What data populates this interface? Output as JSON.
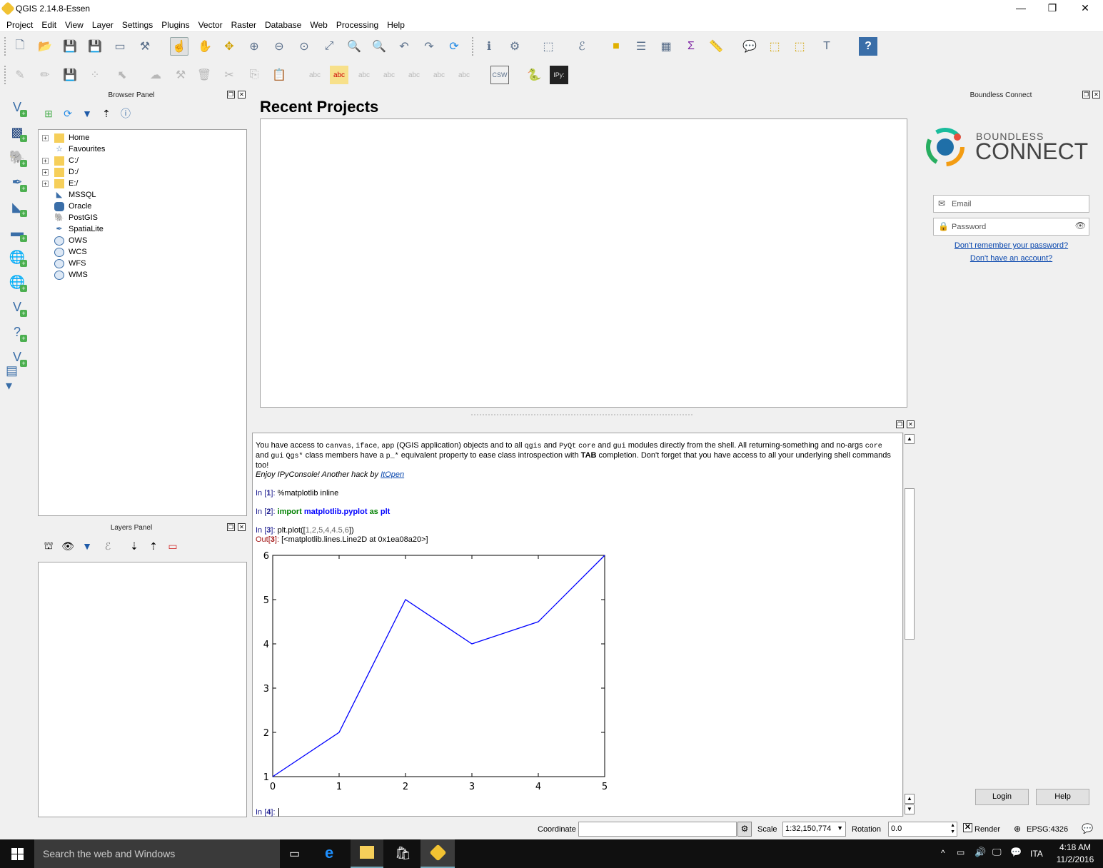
{
  "window": {
    "title": "QGIS 2.14.8-Essen",
    "minimize": "—",
    "maximize": "❐",
    "close": "✕"
  },
  "menu": [
    "Project",
    "Edit",
    "View",
    "Layer",
    "Settings",
    "Plugins",
    "Vector",
    "Raster",
    "Database",
    "Web",
    "Processing",
    "Help"
  ],
  "browser_panel": {
    "title": "Browser Panel",
    "items": [
      {
        "label": "Home",
        "expandable": true,
        "icon": "folder-icon"
      },
      {
        "label": "Favourites",
        "expandable": false,
        "icon": "star-icon"
      },
      {
        "label": "C:/",
        "expandable": true,
        "icon": "folder-icon"
      },
      {
        "label": "D:/",
        "expandable": true,
        "icon": "folder-icon"
      },
      {
        "label": "E:/",
        "expandable": true,
        "icon": "folder-icon"
      },
      {
        "label": "MSSQL",
        "expandable": false,
        "icon": "mssql-icon"
      },
      {
        "label": "Oracle",
        "expandable": false,
        "icon": "oracle-icon"
      },
      {
        "label": "PostGIS",
        "expandable": false,
        "icon": "postgis-icon"
      },
      {
        "label": "SpatiaLite",
        "expandable": false,
        "icon": "spatialite-icon"
      },
      {
        "label": "OWS",
        "expandable": false,
        "icon": "globe-icon"
      },
      {
        "label": "WCS",
        "expandable": false,
        "icon": "globe-icon"
      },
      {
        "label": "WFS",
        "expandable": false,
        "icon": "globe-icon"
      },
      {
        "label": "WMS",
        "expandable": false,
        "icon": "globe-icon"
      }
    ]
  },
  "layers_panel": {
    "title": "Layers Panel"
  },
  "recent_projects": {
    "title": "Recent Projects"
  },
  "console": {
    "intro_1": "You have access to ",
    "intro_code_1": "canvas",
    "intro_sep_1": ", ",
    "intro_code_2": "iface",
    "intro_sep_2": ", ",
    "intro_code_3": "app",
    "intro_2": " (QGIS application) objects and to all ",
    "intro_code_4": "qgis",
    "intro_3": " and ",
    "intro_code_5": "PyQt",
    "intro_sep_3": " ",
    "intro_code_6": "core",
    "intro_4": " and ",
    "intro_code_7": "gui",
    "intro_5": " modules directly from the shell. All returning-something and no-args ",
    "intro_code_8": "core",
    "intro_line2_1": "and ",
    "intro_code_9": "gui",
    "intro_sep_4": " ",
    "intro_code_10": "Qgs*",
    "intro_line2_2": " class members have a ",
    "intro_code_11": "p_*",
    "intro_line2_3": " equivalent property to ease class introspection with ",
    "intro_bold": "TAB",
    "intro_line2_4": " completion. Don't forget that you have access to all your underlying shell commands",
    "intro_line3": "too!",
    "enjoy": "Enjoy IPyConsole! Another hack by ",
    "enjoy_link": "ItOpen",
    "in1_label": "In [",
    "in1_num": "1",
    "in1_close": "]: ",
    "in1_code": "%matplotlib inline",
    "in2_num": "2",
    "in2_kw1": "import",
    "in2_mod": "matplotlib.pyplot",
    "in2_kw2": "as",
    "in2_alias": "plt",
    "in3_num": "3",
    "in3_code_1": "plt.plot([",
    "in3_code_args": "1,2,5,4,4.5,6",
    "in3_code_2": "])",
    "out_label": "Out[",
    "out3_num": "3",
    "out3_text": "[<matplotlib.lines.Line2D at 0x1ea08a20>]",
    "in4_num": "4"
  },
  "chart_data": {
    "type": "line",
    "x": [
      0,
      1,
      2,
      3,
      4,
      5
    ],
    "series": [
      {
        "values": [
          1,
          2,
          5,
          4,
          4.5,
          6
        ],
        "color": "#0000ff"
      }
    ],
    "xticks": [
      "0",
      "1",
      "2",
      "3",
      "4",
      "5"
    ],
    "yticks": [
      "1",
      "2",
      "3",
      "4",
      "5",
      "6"
    ],
    "xlim": [
      0,
      5
    ],
    "ylim": [
      1,
      6
    ],
    "grid": false
  },
  "boundless": {
    "panel_title": "Boundless Connect",
    "logo_top": "BOUNDLESS",
    "logo_bottom": "CONNECT",
    "email_placeholder": "Email",
    "password_placeholder": "Password",
    "forgot": "Don't remember your password?",
    "no_account": "Don't have an account?",
    "login": "Login",
    "help": "Help"
  },
  "statusbar": {
    "coordinate_label": "Coordinate",
    "scale_label": "Scale",
    "scale_value": "1:32,150,774",
    "rotation_label": "Rotation",
    "rotation_value": "0.0",
    "render_label": "Render",
    "crs": "EPSG:4326"
  },
  "taskbar": {
    "search_placeholder": "Search the web and Windows",
    "lang": "ITA",
    "time": "4:18 AM",
    "date": "11/2/2016"
  }
}
